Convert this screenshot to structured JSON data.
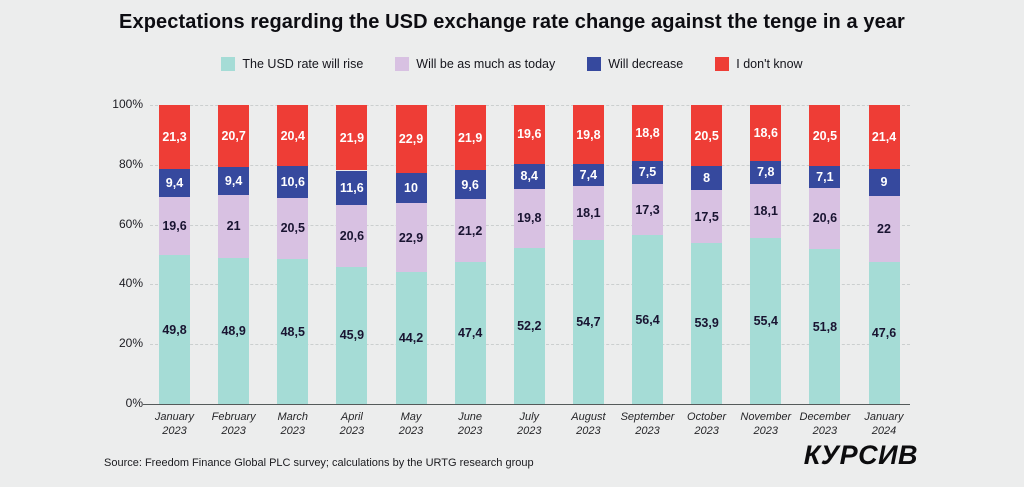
{
  "title": "Expectations regarding the USD exchange rate change against the tenge in a year",
  "legend": [
    {
      "label": "The USD rate will rise",
      "color": "#a5dcd6"
    },
    {
      "label": "Will be as much as today",
      "color": "#d8c1e2"
    },
    {
      "label": "Will decrease",
      "color": "#36499e"
    },
    {
      "label": "I don't know",
      "color": "#ee3d36"
    }
  ],
  "chart_data": {
    "type": "bar",
    "stacked": true,
    "title": "Expectations regarding the USD exchange rate change against the tenge in a year",
    "categories": [
      {
        "month": "January",
        "year": "2023"
      },
      {
        "month": "February",
        "year": "2023"
      },
      {
        "month": "March",
        "year": "2023"
      },
      {
        "month": "April",
        "year": "2023"
      },
      {
        "month": "May",
        "year": "2023"
      },
      {
        "month": "June",
        "year": "2023"
      },
      {
        "month": "July",
        "year": "2023"
      },
      {
        "month": "August",
        "year": "2023"
      },
      {
        "month": "September",
        "year": "2023"
      },
      {
        "month": "October",
        "year": "2023"
      },
      {
        "month": "November",
        "year": "2023"
      },
      {
        "month": "December",
        "year": "2023"
      },
      {
        "month": "January",
        "year": "2024"
      }
    ],
    "series": [
      {
        "name": "The USD rate will rise",
        "color": "#a5dcd6",
        "label_color": "#191431",
        "values": [
          49.8,
          48.9,
          48.5,
          45.9,
          44.2,
          47.4,
          52.2,
          54.7,
          56.4,
          53.9,
          55.4,
          51.8,
          47.6
        ],
        "labels": [
          "49,8",
          "48,9",
          "48,5",
          "45,9",
          "44,2",
          "47,4",
          "52,2",
          "54,7",
          "56,4",
          "53,9",
          "55,4",
          "51,8",
          "47,6"
        ]
      },
      {
        "name": "Will be as much as today",
        "color": "#d8c1e2",
        "label_color": "#191431",
        "values": [
          19.6,
          21,
          20.5,
          20.6,
          22.9,
          21.2,
          19.8,
          18.1,
          17.3,
          17.5,
          18.1,
          20.6,
          22
        ],
        "labels": [
          "19,6",
          "21",
          "20,5",
          "20,6",
          "22,9",
          "21,2",
          "19,8",
          "18,1",
          "17,3",
          "17,5",
          "18,1",
          "20,6",
          "22"
        ]
      },
      {
        "name": "Will decrease",
        "color": "#36499e",
        "label_color": "#ffffff",
        "values": [
          9.4,
          9.4,
          10.6,
          11.6,
          10,
          9.6,
          8.4,
          7.4,
          7.5,
          8,
          7.8,
          7.1,
          9
        ],
        "labels": [
          "9,4",
          "9,4",
          "10,6",
          "11,6",
          "10",
          "9,6",
          "8,4",
          "7,4",
          "7,5",
          "8",
          "7,8",
          "7,1",
          "9"
        ]
      },
      {
        "name": "I don't know",
        "color": "#ee3d36",
        "label_color": "#ffffff",
        "values": [
          21.3,
          20.7,
          20.4,
          21.9,
          22.9,
          21.9,
          19.6,
          19.8,
          18.8,
          20.5,
          18.6,
          20.5,
          21.4
        ],
        "labels": [
          "21,3",
          "20,7",
          "20,4",
          "21,9",
          "22,9",
          "21,9",
          "19,6",
          "19,8",
          "18,8",
          "20,5",
          "18,6",
          "20,5",
          "21,4"
        ]
      }
    ],
    "yticks": [
      {
        "value": 100,
        "label": "100%"
      },
      {
        "value": 80,
        "label": "80%"
      },
      {
        "value": 60,
        "label": "60%"
      },
      {
        "value": 40,
        "label": "40%"
      },
      {
        "value": 20,
        "label": "20%"
      },
      {
        "value": 0,
        "label": "0%"
      }
    ],
    "ylim": [
      0,
      100
    ],
    "grid": "dashed-horizontal",
    "legend_position": "top"
  },
  "footer": {
    "source": "Source: Freedom Finance Global PLC survey; calculations by the URTG research group",
    "logo": "КУРСИВ"
  }
}
